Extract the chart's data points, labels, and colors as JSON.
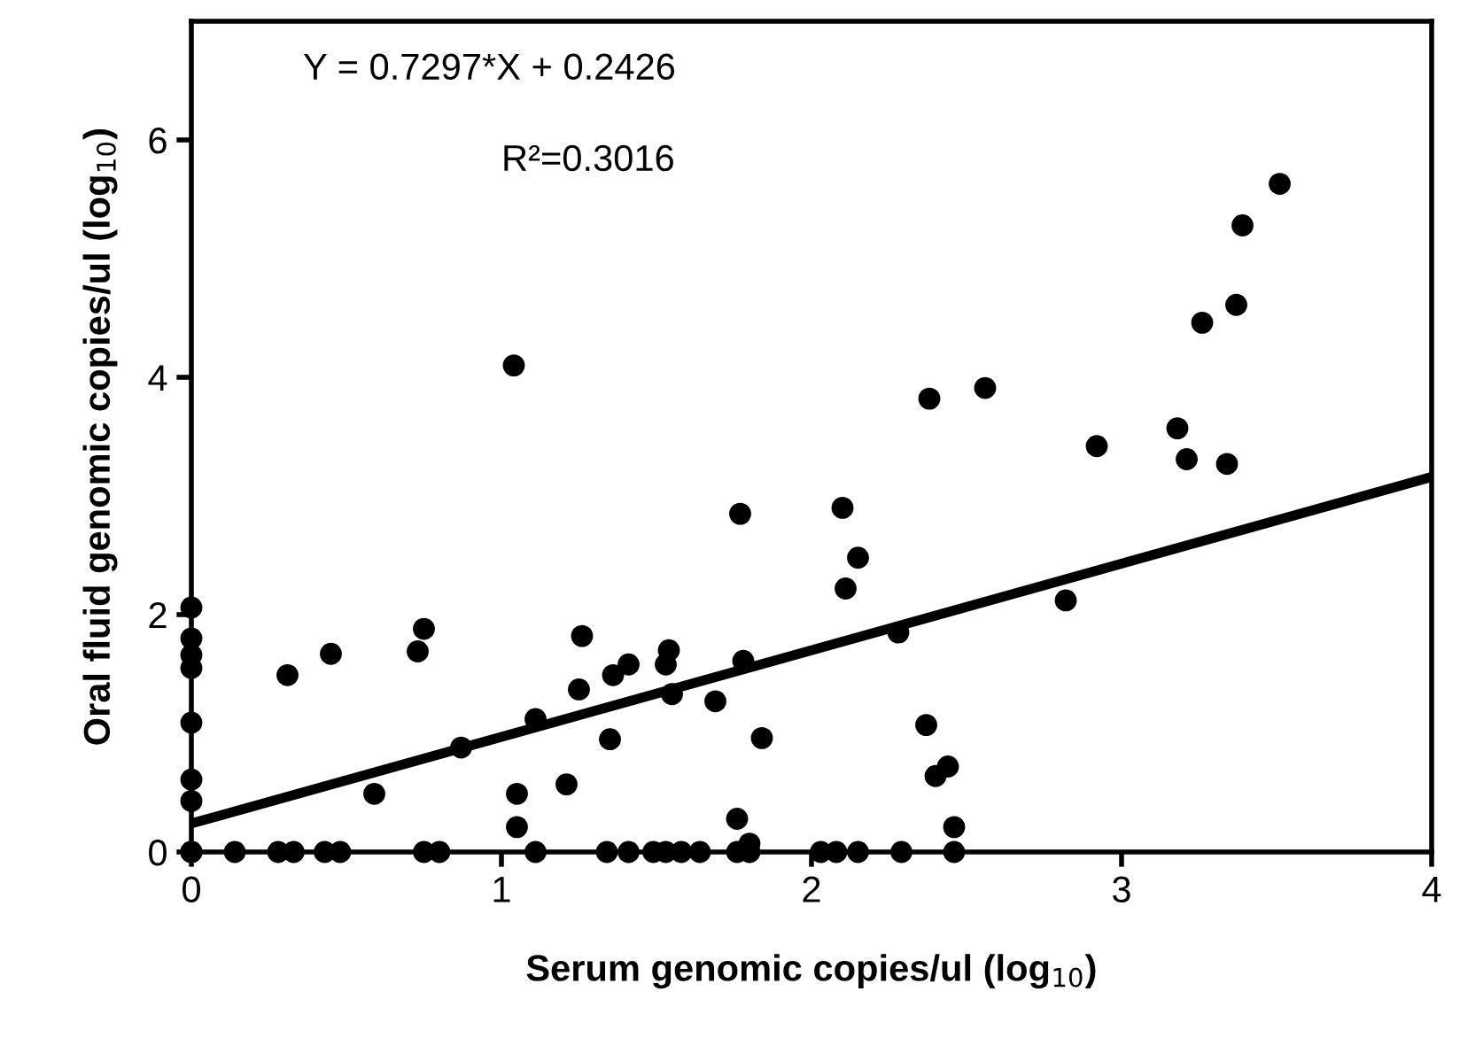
{
  "chart_data": {
    "type": "scatter",
    "xlabel": "Serum genomic copies/ul (log$_{10}$)",
    "ylabel": "Oral fluid genomic copies/ul (log$_{10}$)",
    "annotations": [
      "Y = 0.7297*X + 0.2426",
      "R²=0.3016"
    ],
    "xlim": [
      0,
      4
    ],
    "ylim": [
      0,
      7
    ],
    "xticks": [
      0,
      1,
      2,
      3,
      4
    ],
    "yticks": [
      0,
      2,
      4,
      6
    ],
    "grid": false,
    "legend": false,
    "marker": "circle",
    "series": [
      {
        "color": "#000000",
        "x": [
          0,
          0,
          0,
          0,
          0,
          0,
          0,
          0,
          0,
          0,
          0.14,
          0.28,
          0.33,
          0.43,
          0.48,
          0.75,
          0.8,
          1.11,
          1.34,
          1.41,
          1.49,
          1.53,
          1.58,
          1.64,
          1.76,
          1.8,
          2.03,
          2.08,
          2.15,
          2.29,
          2.46,
          0.31,
          0.45,
          0.75,
          0.73,
          0.59,
          0.87,
          1.05,
          1.05,
          1.11,
          1.21,
          1.26,
          1.25,
          1.35,
          1.36,
          1.41,
          1.54,
          1.53,
          1.55,
          1.69,
          1.78,
          1.76,
          1.8,
          1.84,
          2.15,
          2.11,
          2.28,
          2.82,
          2.37,
          2.44,
          2.4,
          2.46,
          1.04,
          2.38,
          2.56,
          1.77,
          2.1,
          2.92,
          3.18,
          3.21,
          3.34,
          3.26,
          3.37,
          3.39,
          3.51
        ],
        "values": [
          2.06,
          1.8,
          1.66,
          1.55,
          1.09,
          0.61,
          0.43,
          0,
          0,
          0,
          0,
          0,
          0,
          0,
          0,
          0,
          0,
          0,
          0,
          0,
          0,
          0,
          0,
          0,
          0,
          0,
          0,
          0,
          0,
          0,
          0,
          1.49,
          1.67,
          1.88,
          1.69,
          0.49,
          0.88,
          0.49,
          0.21,
          1.12,
          0.57,
          1.82,
          1.37,
          0.95,
          1.49,
          1.58,
          1.7,
          1.58,
          1.33,
          1.27,
          1.61,
          0.28,
          0.07,
          0.96,
          2.48,
          2.22,
          1.85,
          2.12,
          1.07,
          0.72,
          0.64,
          0.21,
          4.1,
          3.82,
          3.91,
          2.85,
          2.9,
          3.42,
          3.57,
          3.31,
          3.27,
          4.46,
          4.61,
          5.28,
          5.63
        ]
      },
      {
        "type": "line",
        "color": "#000000",
        "marker": "none",
        "x": [
          0,
          4
        ],
        "values": [
          0.24,
          3.16
        ]
      }
    ]
  }
}
